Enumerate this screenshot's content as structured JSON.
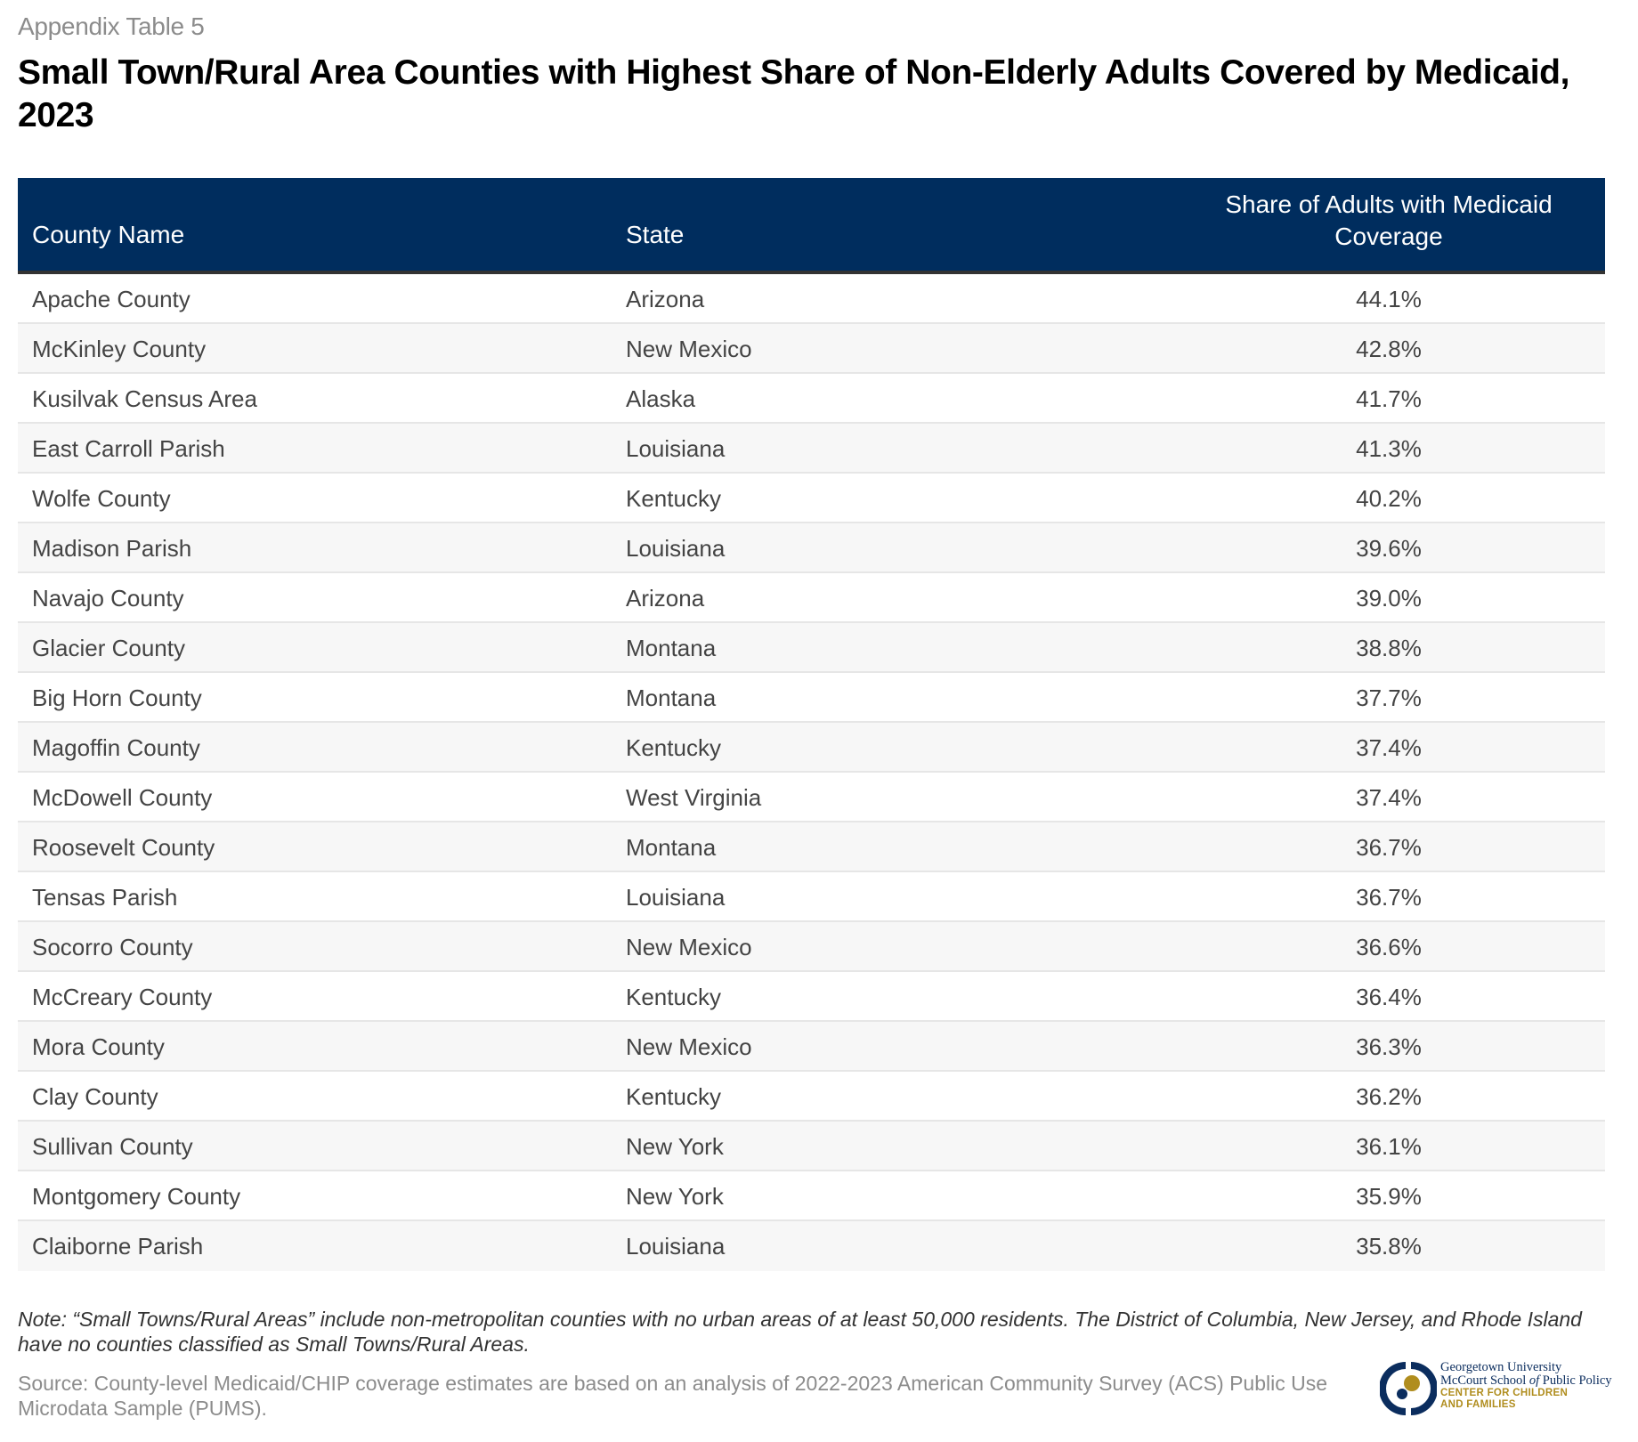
{
  "header": {
    "eyebrow": "Appendix Table 5",
    "title": "Small Town/Rural Area Counties with Highest Share of Non-Elderly Adults Covered by Medicaid, 2023"
  },
  "table": {
    "columns": [
      "County Name",
      "State",
      "Share of Adults with Medicaid Coverage"
    ],
    "rows": [
      {
        "county": "Apache County",
        "state": "Arizona",
        "share": "44.1%"
      },
      {
        "county": "McKinley County",
        "state": "New Mexico",
        "share": "42.8%"
      },
      {
        "county": "Kusilvak Census Area",
        "state": "Alaska",
        "share": "41.7%"
      },
      {
        "county": "East Carroll Parish",
        "state": "Louisiana",
        "share": "41.3%"
      },
      {
        "county": "Wolfe County",
        "state": "Kentucky",
        "share": "40.2%"
      },
      {
        "county": "Madison Parish",
        "state": "Louisiana",
        "share": "39.6%"
      },
      {
        "county": "Navajo County",
        "state": "Arizona",
        "share": "39.0%"
      },
      {
        "county": "Glacier County",
        "state": "Montana",
        "share": "38.8%"
      },
      {
        "county": "Big Horn County",
        "state": "Montana",
        "share": "37.7%"
      },
      {
        "county": "Magoffin County",
        "state": "Kentucky",
        "share": "37.4%"
      },
      {
        "county": "McDowell County",
        "state": "West Virginia",
        "share": "37.4%"
      },
      {
        "county": "Roosevelt County",
        "state": "Montana",
        "share": "36.7%"
      },
      {
        "county": "Tensas Parish",
        "state": "Louisiana",
        "share": "36.7%"
      },
      {
        "county": "Socorro County",
        "state": "New Mexico",
        "share": "36.6%"
      },
      {
        "county": "McCreary County",
        "state": "Kentucky",
        "share": "36.4%"
      },
      {
        "county": "Mora County",
        "state": "New Mexico",
        "share": "36.3%"
      },
      {
        "county": "Clay County",
        "state": "Kentucky",
        "share": "36.2%"
      },
      {
        "county": "Sullivan County",
        "state": "New York",
        "share": "36.1%"
      },
      {
        "county": "Montgomery County",
        "state": "New York",
        "share": "35.9%"
      },
      {
        "county": "Claiborne Parish",
        "state": "Louisiana",
        "share": "35.8%"
      }
    ]
  },
  "footer": {
    "note": "Note: “Small Towns/Rural Areas” include non-metropolitan counties with no urban areas of at least 50,000 residents. The District of Columbia, New Jersey, and Rhode Island have no counties classified as Small Towns/Rural Areas.",
    "source": "Source: County-level Medicaid/CHIP coverage estimates are based on an analysis of 2022-2023 American Community Survey (ACS) Public Use Microdata Sample (PUMS).",
    "logo": {
      "line1": "Georgetown University",
      "line2_a": "McCourt School ",
      "line2_b": "of",
      "line2_c": " Public Policy",
      "line3": "CENTER FOR CHILDREN",
      "line4": "AND FAMILIES"
    }
  },
  "colors": {
    "header_bg": "#002d5e",
    "logo_navy": "#0b2d5e",
    "logo_gold": "#b08d1e"
  }
}
